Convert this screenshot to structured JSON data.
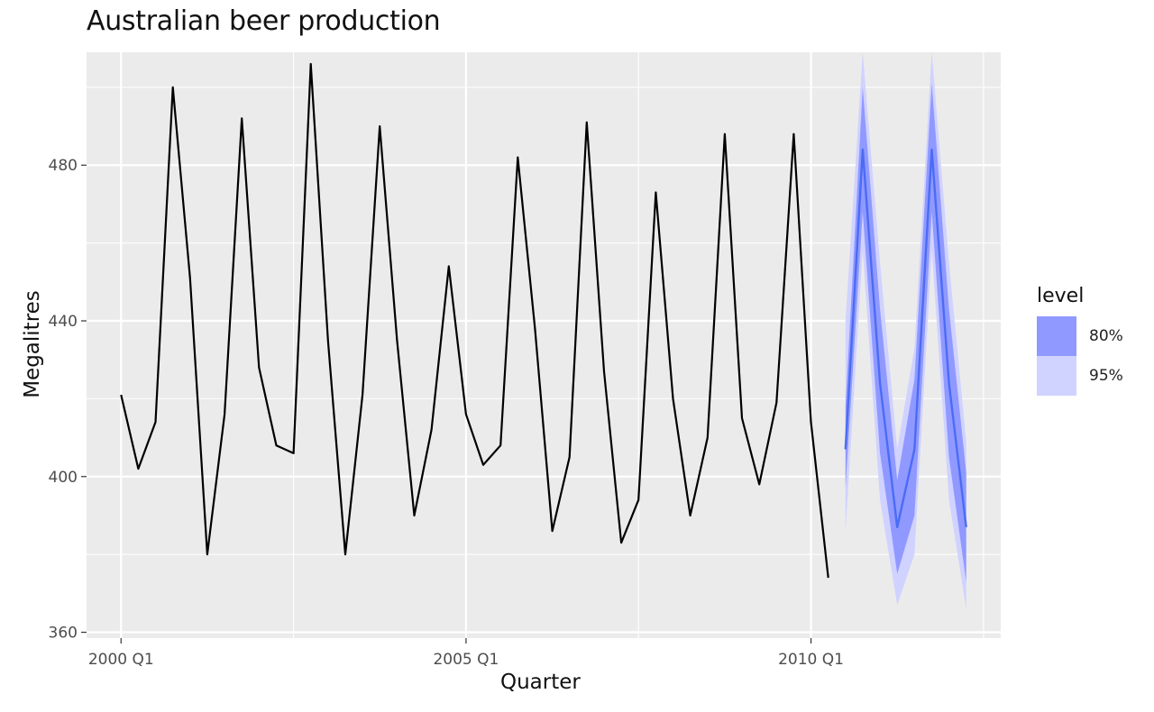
{
  "chart_data": {
    "type": "line",
    "title": "Australian beer production",
    "xlabel": "Quarter",
    "ylabel": "Megalitres",
    "ylim": [
      358.5,
      509
    ],
    "ytick_values": [
      360,
      400,
      440,
      480
    ],
    "ytick_labels": [
      "360",
      "400",
      "440",
      "480"
    ],
    "xtick_labels": [
      "2000 Q1",
      "2005 Q1",
      "2010 Q1"
    ],
    "xtick_quarters": [
      "2000 Q1",
      "2005 Q1",
      "2010 Q1"
    ],
    "x_range_quarters": [
      "1999 Q3",
      "2012 Q4"
    ],
    "grid": true,
    "legend_position": "right",
    "legend": {
      "title": "level",
      "items": [
        {
          "label": "80%",
          "color": "#9099ff"
        },
        {
          "label": "95%",
          "color": "#d0d2ff"
        }
      ]
    },
    "series": [
      {
        "color": "#000000",
        "x": [
          "2000 Q1",
          "2000 Q2",
          "2000 Q3",
          "2000 Q4",
          "2001 Q1",
          "2001 Q2",
          "2001 Q3",
          "2001 Q4",
          "2002 Q1",
          "2002 Q2",
          "2002 Q3",
          "2002 Q4",
          "2003 Q1",
          "2003 Q2",
          "2003 Q3",
          "2003 Q4",
          "2004 Q1",
          "2004 Q2",
          "2004 Q3",
          "2004 Q4",
          "2005 Q1",
          "2005 Q2",
          "2005 Q3",
          "2005 Q4",
          "2006 Q1",
          "2006 Q2",
          "2006 Q3",
          "2006 Q4",
          "2007 Q1",
          "2007 Q2",
          "2007 Q3",
          "2007 Q4",
          "2008 Q1",
          "2008 Q2",
          "2008 Q3",
          "2008 Q4",
          "2009 Q1",
          "2009 Q2",
          "2009 Q3",
          "2009 Q4",
          "2010 Q1",
          "2010 Q2"
        ],
        "values": [
          421,
          402,
          414,
          500,
          451,
          380,
          416,
          492,
          428,
          408,
          406,
          506,
          435,
          380,
          421,
          490,
          435,
          390,
          412,
          454,
          416,
          403,
          408,
          482,
          438,
          386,
          405,
          491,
          427,
          383,
          394,
          473,
          420,
          390,
          410,
          488,
          415,
          398,
          419,
          488,
          414,
          374
        ]
      },
      {
        "color": "#4a6cf5",
        "x": [
          "2010 Q3",
          "2010 Q4",
          "2011 Q1",
          "2011 Q2",
          "2011 Q3",
          "2011 Q4",
          "2012 Q1",
          "2012 Q2"
        ],
        "values": [
          407,
          484,
          424,
          387,
          407,
          484,
          424,
          387
        ],
        "band80_low": [
          397,
          468,
          406,
          375,
          390,
          468,
          405,
          373
        ],
        "band80_high": [
          418,
          500,
          443,
          399,
          425,
          501,
          443,
          401
        ],
        "band95_low": [
          386,
          458,
          394,
          367,
          380,
          458,
          394,
          366
        ],
        "band95_high": [
          440,
          509,
          455,
          407,
          433,
          509,
          455,
          409
        ]
      }
    ]
  }
}
